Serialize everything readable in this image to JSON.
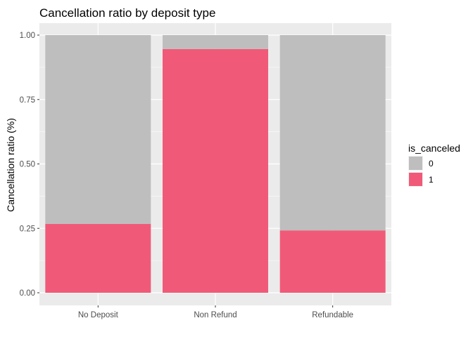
{
  "chart_data": {
    "type": "bar",
    "stacked": true,
    "title": "Cancellation ratio by deposit type",
    "xlabel": "",
    "ylabel": "Cancellation ratio (%)",
    "categories": [
      "No Deposit",
      "Non Refund",
      "Refundable"
    ],
    "series": [
      {
        "name": "1",
        "values": [
          0.267,
          0.946,
          0.242
        ],
        "color": "#F05A78"
      },
      {
        "name": "0",
        "values": [
          0.733,
          0.054,
          0.758
        ],
        "color": "#BEBEBE"
      }
    ],
    "ylim": [
      0,
      1
    ],
    "yticks": [
      0.0,
      0.25,
      0.5,
      0.75,
      1.0
    ],
    "ytick_labels": [
      "0.00",
      "0.25",
      "0.50",
      "0.75",
      "1.00"
    ],
    "grid": true,
    "legend": {
      "title": "is_canceled",
      "placement": "right",
      "entries": [
        {
          "label": "0",
          "color": "#BEBEBE"
        },
        {
          "label": "1",
          "color": "#F05A78"
        }
      ]
    },
    "panel_background": "#EBEBEB",
    "grid_color": "#FFFFFF"
  }
}
